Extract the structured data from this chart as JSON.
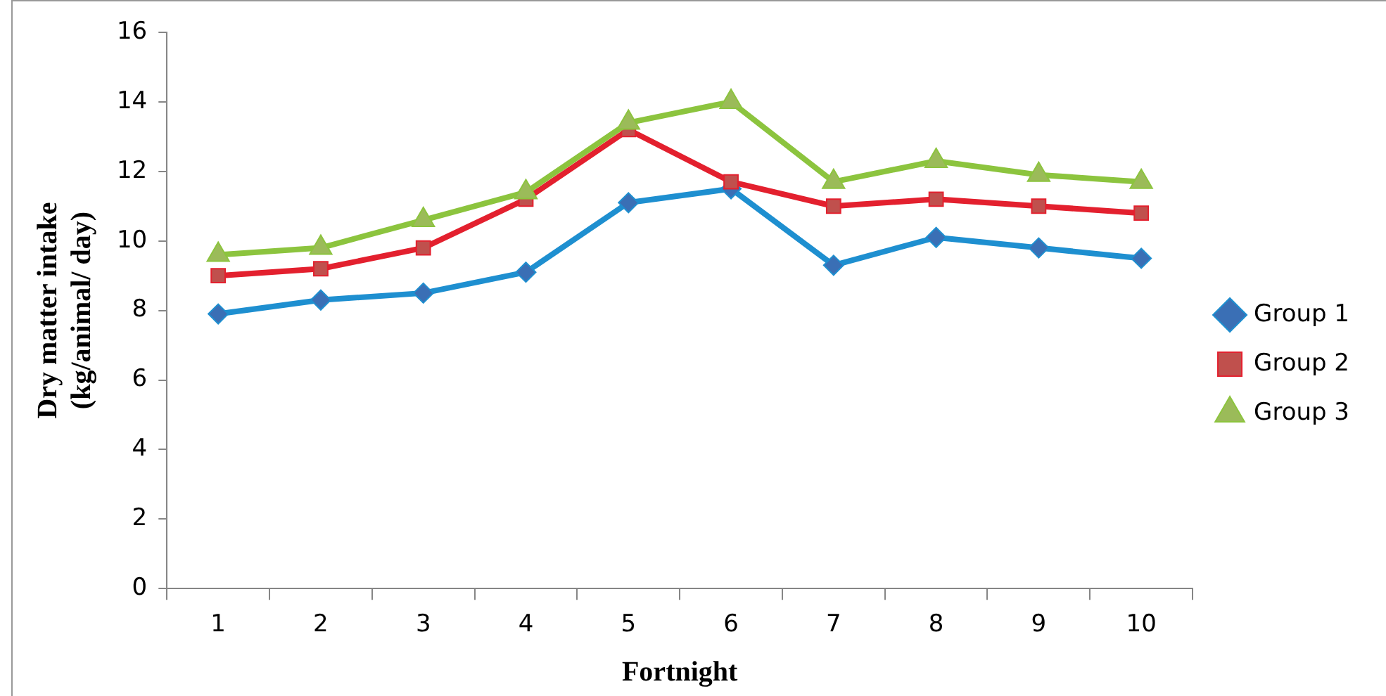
{
  "chart_data": {
    "type": "line",
    "xlabel": "Fortnight",
    "ylabel": "Dry matter intake\n(kg/animal/ day)",
    "categories": [
      "1",
      "2",
      "3",
      "4",
      "5",
      "6",
      "7",
      "8",
      "9",
      "10"
    ],
    "ylim": [
      0,
      16
    ],
    "yticks": [
      0,
      2,
      4,
      6,
      8,
      10,
      12,
      14,
      16
    ],
    "grid": false,
    "legend": "right",
    "line_style": "solid",
    "series": [
      {
        "name": "Group 1",
        "color": "#1e8fd0",
        "marker": "diamond",
        "values": [
          7.9,
          8.3,
          8.5,
          9.1,
          11.1,
          11.5,
          9.3,
          10.1,
          9.8,
          9.5
        ]
      },
      {
        "name": "Group 2",
        "color": "#e3202e",
        "marker": "square",
        "values": [
          9.0,
          9.2,
          9.8,
          11.2,
          13.2,
          11.7,
          11.0,
          11.2,
          11.0,
          10.8
        ]
      },
      {
        "name": "Group 3",
        "color": "#8cc43e",
        "marker": "triangle",
        "values": [
          9.6,
          9.8,
          10.6,
          11.4,
          13.4,
          14.0,
          11.7,
          12.3,
          11.9,
          11.7
        ]
      }
    ]
  }
}
